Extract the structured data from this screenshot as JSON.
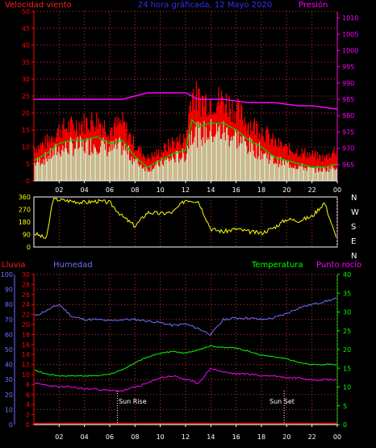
{
  "header": {
    "left": "Velocidad viento",
    "center": "24 hora gráficada, 12 Mayo 2020",
    "right": "Presión"
  },
  "wind_labels": [
    "N",
    "W",
    "S",
    "E",
    "N"
  ],
  "lower_header": {
    "rain": "Lluvia",
    "humidity": "Humedad",
    "temperature": "Temperatura",
    "dewpoint": "Punto rocío"
  },
  "sun": {
    "rise_label": "Sun Rise",
    "set_label": "Sun Set"
  },
  "colors": {
    "gust": "#ff0000",
    "avg_wind": "#00d000",
    "wind_fill": "#ccffcc",
    "pressure": "#ff00ff",
    "direction": "#ffff00",
    "humidity": "#7070ff",
    "temperature": "#00ff00",
    "dewpoint": "#ff00ff",
    "rain": "#ff0000",
    "axis": "#ffffff",
    "grid": "#cc3333"
  },
  "chart_data": [
    {
      "type": "area",
      "name": "wind_and_pressure",
      "x_ticks": [
        "02",
        "04",
        "06",
        "08",
        "10",
        "12",
        "14",
        "16",
        "18",
        "20",
        "22",
        "00"
      ],
      "x_range": [
        0,
        24
      ],
      "y_left_ticks": [
        0,
        5,
        10,
        15,
        20,
        25,
        30,
        35,
        40,
        45,
        50
      ],
      "y_left_range": [
        0,
        50
      ],
      "y_right_ticks": [
        965,
        970,
        975,
        980,
        985,
        990,
        995,
        1000,
        1005,
        1010
      ],
      "y_right_range": [
        960,
        1012
      ],
      "x": [
        0,
        1,
        2,
        3,
        4,
        5,
        6,
        7,
        8,
        9,
        10,
        11,
        12,
        12.5,
        13,
        14,
        15,
        16,
        17,
        18,
        19,
        20,
        21,
        22,
        23,
        24
      ],
      "series": [
        {
          "name": "gust",
          "axis": "left",
          "values": [
            10,
            12,
            16,
            17,
            18,
            19,
            16,
            18,
            11,
            7,
            9,
            12,
            13,
            28,
            25,
            25,
            25,
            22,
            18,
            16,
            12,
            10,
            9,
            8,
            7,
            10
          ]
        },
        {
          "name": "wind_avg",
          "axis": "left",
          "values": [
            6,
            8,
            11,
            12,
            12,
            13,
            11,
            12,
            7,
            4,
            6,
            8,
            9,
            18,
            16,
            17,
            17,
            15,
            12,
            10,
            7,
            6,
            5,
            4,
            4,
            5
          ]
        },
        {
          "name": "pressure",
          "axis": "right",
          "values": [
            985,
            985,
            985,
            985,
            985,
            985,
            985,
            985,
            986,
            987,
            987,
            987,
            987,
            986,
            985,
            985,
            985,
            984.5,
            984,
            984,
            984,
            983.5,
            983,
            983,
            982.5,
            982
          ]
        }
      ]
    },
    {
      "type": "line",
      "name": "wind_direction",
      "x_ticks": [
        "02",
        "04",
        "06",
        "08",
        "10",
        "12",
        "14",
        "16",
        "18",
        "20",
        "22",
        "00"
      ],
      "x_range": [
        0,
        24
      ],
      "y_ticks": [
        360,
        270,
        180,
        90,
        0
      ],
      "y_range": [
        0,
        360
      ],
      "series": [
        {
          "name": "direction",
          "x": [
            0,
            1,
            1.5,
            2,
            4,
            5,
            6,
            7,
            8,
            9,
            10,
            11,
            12,
            13,
            14,
            15,
            16,
            17,
            18,
            19,
            20,
            21,
            22,
            23,
            24
          ],
          "values": [
            100,
            60,
            340,
            340,
            320,
            330,
            320,
            220,
            150,
            250,
            240,
            250,
            340,
            330,
            130,
            110,
            130,
            110,
            100,
            140,
            200,
            190,
            220,
            320,
            40
          ]
        }
      ]
    },
    {
      "type": "line",
      "name": "humidity_temp_dew_rain",
      "x_ticks": [
        "02",
        "04",
        "06",
        "08",
        "10",
        "12",
        "14",
        "16",
        "18",
        "20",
        "22",
        "00"
      ],
      "x_range": [
        0,
        24
      ],
      "y_ticks_humidity": [
        0,
        10,
        20,
        30,
        40,
        50,
        60,
        70,
        80,
        90,
        100
      ],
      "y_ticks_rain": [
        0,
        2,
        4,
        6,
        8,
        10,
        12,
        14,
        16,
        18,
        20,
        22,
        24,
        26,
        28,
        30
      ],
      "y_ticks_temp": [
        0,
        5,
        10,
        15,
        20,
        25,
        30,
        35,
        40
      ],
      "y_range_humidity": [
        0,
        100
      ],
      "y_range_rain": [
        0,
        30
      ],
      "y_range_temp": [
        0,
        40
      ],
      "x": [
        0,
        1,
        2,
        3,
        4,
        5,
        6,
        7,
        8,
        9,
        10,
        11,
        12,
        13,
        14,
        15,
        16,
        17,
        18,
        19,
        20,
        21,
        22,
        23,
        24
      ],
      "series": [
        {
          "name": "humidity",
          "axis": "humidity",
          "values": [
            72,
            76,
            80,
            72,
            70,
            70,
            69,
            70,
            70,
            69,
            68,
            66,
            67,
            64,
            60,
            70,
            71,
            71,
            70,
            71,
            74,
            78,
            80,
            82,
            84
          ]
        },
        {
          "name": "temperature",
          "axis": "temp",
          "values": [
            14.5,
            13.5,
            13,
            13,
            13,
            13,
            13.5,
            14.5,
            16.5,
            18,
            19,
            19.5,
            19,
            20,
            21,
            20.5,
            20.5,
            19.5,
            18.5,
            18,
            17.5,
            16.5,
            16,
            16,
            16
          ]
        },
        {
          "name": "dewpoint",
          "axis": "temp",
          "values": [
            11,
            10.5,
            10,
            10,
            9.5,
            9.5,
            9,
            9,
            10,
            11,
            12.5,
            13,
            12,
            11,
            15,
            14,
            13.5,
            13.5,
            13,
            13,
            12.5,
            12.5,
            12,
            12,
            12
          ]
        },
        {
          "name": "rain",
          "axis": "rain",
          "values": [
            0,
            0,
            0,
            0,
            0,
            0,
            0,
            0,
            0,
            0,
            0,
            0,
            0,
            0,
            0,
            0,
            0,
            0,
            0,
            0,
            0,
            0,
            0,
            0,
            0
          ]
        }
      ],
      "markers": [
        {
          "name": "sunrise",
          "x": 6.6
        },
        {
          "name": "sunset",
          "x": 19.8
        }
      ]
    }
  ]
}
